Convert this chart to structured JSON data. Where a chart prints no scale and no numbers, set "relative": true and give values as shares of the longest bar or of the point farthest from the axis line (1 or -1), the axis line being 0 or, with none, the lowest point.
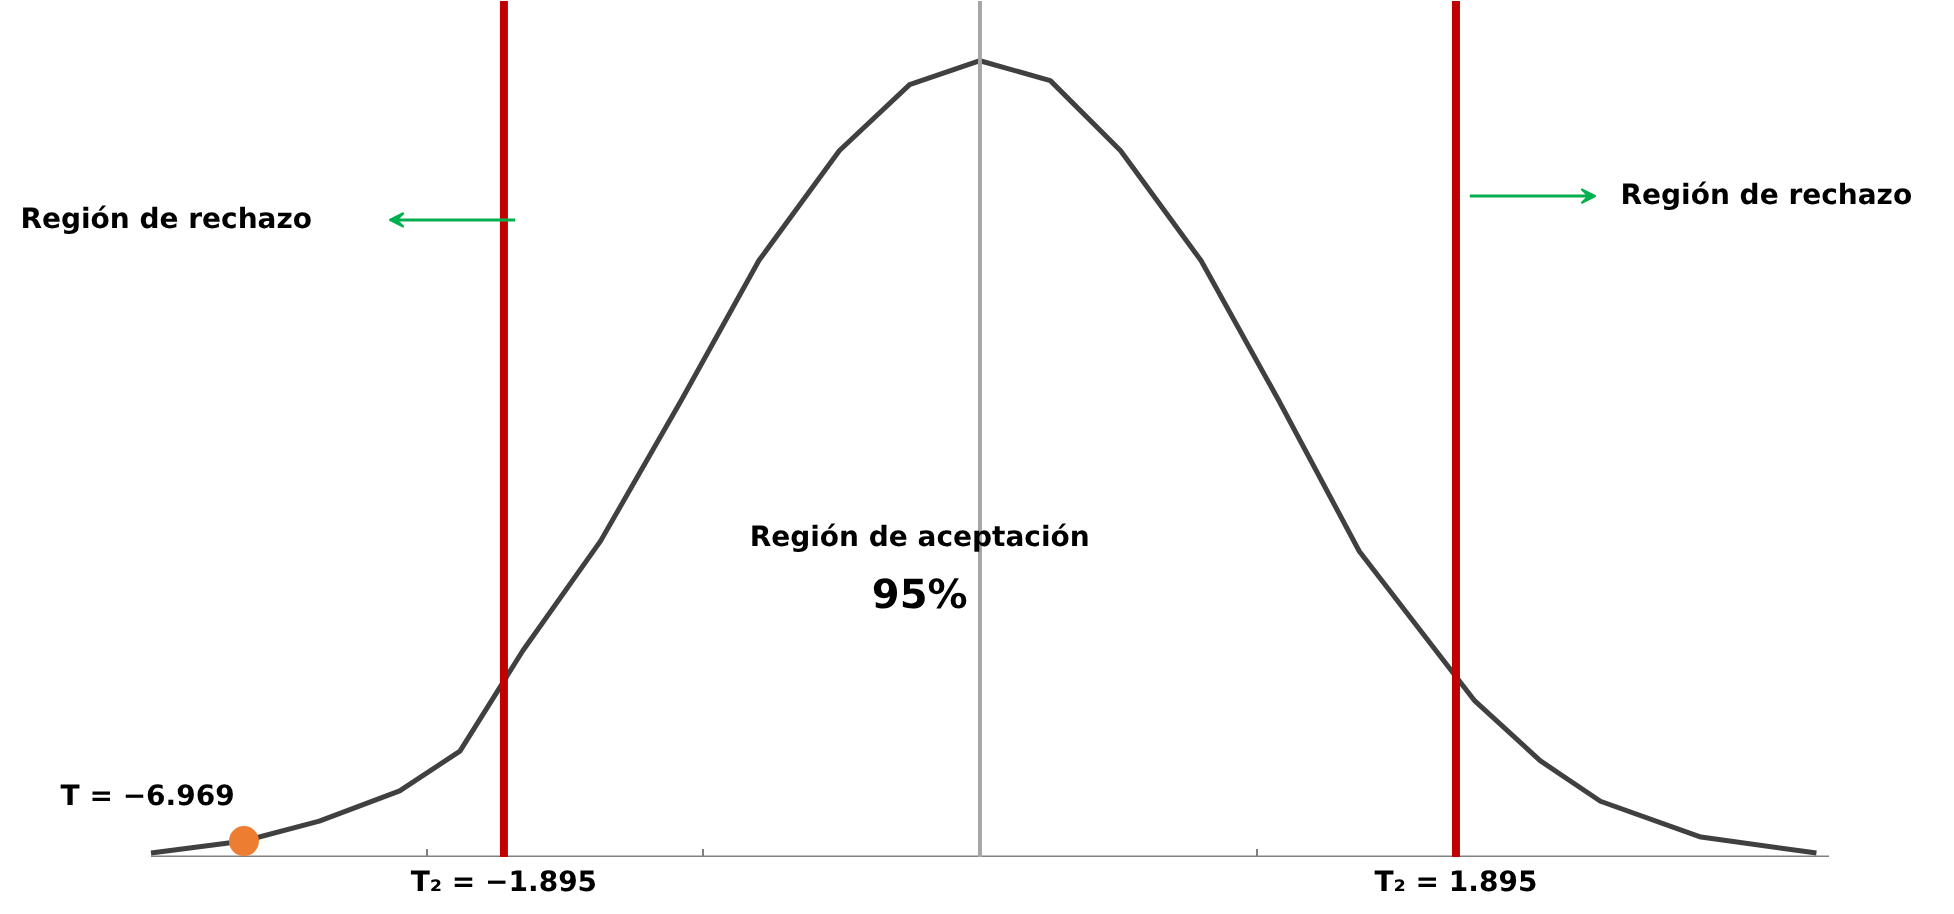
{
  "chart_data": {
    "type": "line",
    "relative": true,
    "tick_labels": "x",
    "grid": false,
    "marker": "none",
    "line_style": "solid",
    "xlim": [
      -3.3,
      3.38
    ],
    "xticks": [
      {
        "value": -2.2,
        "label": null
      },
      {
        "value": -1.895,
        "label": "T₂ = −1.895"
      },
      {
        "value": -1.1,
        "label": null
      },
      {
        "value": 0,
        "label": null
      },
      {
        "value": 1.1,
        "label": null
      },
      {
        "value": 1.895,
        "label": "T₂ = 1.895"
      }
    ],
    "series": [
      {
        "color": "#404040",
        "x": [
          -3.3,
          -2.93,
          -2.63,
          -2.31,
          -2.07,
          -1.82,
          -1.51,
          -1.19,
          -0.88,
          -0.56,
          -0.28,
          0,
          0.28,
          0.56,
          0.88,
          1.19,
          1.51,
          1.97,
          2.23,
          2.47,
          2.87,
          3.33
        ],
        "values": [
          0.005,
          0.02,
          0.045,
          0.083,
          0.133,
          0.259,
          0.397,
          0.573,
          0.749,
          0.887,
          0.97,
          1,
          0.975,
          0.887,
          0.749,
          0.573,
          0.384,
          0.196,
          0.121,
          0.07,
          0.025,
          0.005
        ]
      },
      {
        "type": "scatter",
        "color": "#ed7d31",
        "marker": "circle",
        "x": [
          -2.93
        ],
        "values": [
          0.02
        ]
      }
    ],
    "ref_lines": [
      {
        "axis": "x",
        "value": -1.895,
        "color": "#c00000"
      },
      {
        "axis": "x",
        "value": 1.895,
        "color": "#c00000"
      },
      {
        "axis": "x",
        "value": 0,
        "color": "#a6a6a6"
      }
    ],
    "annotations": [
      "Región de rechazo",
      "Región de rechazo",
      "Región de aceptación",
      "95%",
      "T = −6.969"
    ]
  }
}
